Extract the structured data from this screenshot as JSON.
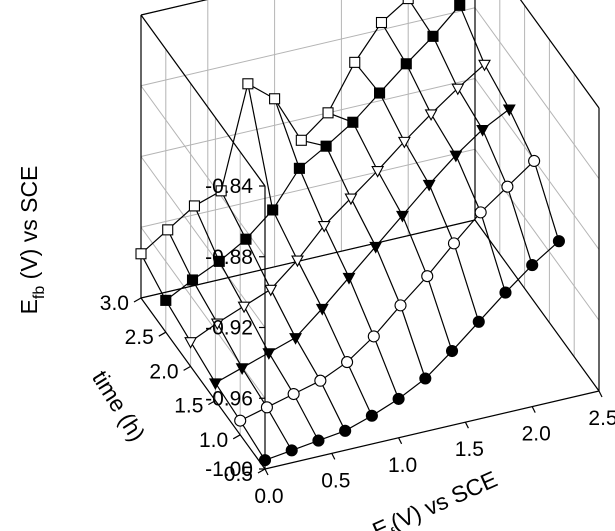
{
  "chart_data": {
    "type": "scatter3d",
    "zlabel": {
      "main": "E",
      "sub": "fb",
      "rest": " (V) vs SCE"
    },
    "xlabel": {
      "main": "E",
      "sub": "f",
      "rest": "(V) vs SCE"
    },
    "ylabel": "time (h)",
    "xlim": [
      0.0,
      2.5
    ],
    "ylim": [
      0.5,
      3.0
    ],
    "zlim": [
      -1.0,
      -0.84
    ],
    "x_ticks": [
      "0.0",
      "0.5",
      "1.0",
      "1.5",
      "2.0",
      "2.5"
    ],
    "y_ticks": [
      "0.5",
      "1.0",
      "1.5",
      "2.0",
      "2.5",
      "3.0"
    ],
    "z_ticks": [
      "-0.84",
      "-0.88",
      "-0.92",
      "-0.96",
      "-1.00"
    ],
    "grid": true,
    "ef_values": [
      0.0,
      0.2,
      0.4,
      0.6,
      0.8,
      1.0,
      1.2,
      1.4,
      1.6,
      1.8,
      2.0,
      2.2
    ],
    "series": [
      {
        "time": 3.0,
        "marker": "open-square",
        "efb": [
          -0.975,
          -0.965,
          -0.955,
          -0.95,
          -0.893,
          -0.905,
          -0.932,
          -0.92,
          -0.895,
          -0.876,
          -0.866,
          -0.843
        ]
      },
      {
        "time": 2.5,
        "marker": "filled-square",
        "efb": [
          -0.982,
          -0.974,
          -0.967,
          -0.958,
          -0.945,
          -0.925,
          -0.916,
          -0.906,
          -0.893,
          -0.88,
          -0.868,
          -0.854
        ]
      },
      {
        "time": 2.0,
        "marker": "open-triangle-down",
        "efb": [
          -0.986,
          -0.979,
          -0.973,
          -0.967,
          -0.954,
          -0.938,
          -0.926,
          -0.914,
          -0.901,
          -0.889,
          -0.878,
          -0.868
        ]
      },
      {
        "time": 1.5,
        "marker": "filled-triangle-down",
        "efb": [
          -0.99,
          -0.985,
          -0.98,
          -0.975,
          -0.962,
          -0.948,
          -0.934,
          -0.92,
          -0.906,
          -0.893,
          -0.882,
          -0.874
        ]
      },
      {
        "time": 1.0,
        "marker": "open-circle",
        "efb": [
          -0.992,
          -0.988,
          -0.984,
          -0.98,
          -0.973,
          -0.962,
          -0.948,
          -0.935,
          -0.92,
          -0.906,
          -0.895,
          -0.884
        ]
      },
      {
        "time": 0.5,
        "marker": "filled-circle",
        "efb": [
          -0.995,
          -0.993,
          -0.991,
          -0.989,
          -0.984,
          -0.978,
          -0.97,
          -0.958,
          -0.945,
          -0.932,
          -0.92,
          -0.91
        ]
      }
    ]
  }
}
